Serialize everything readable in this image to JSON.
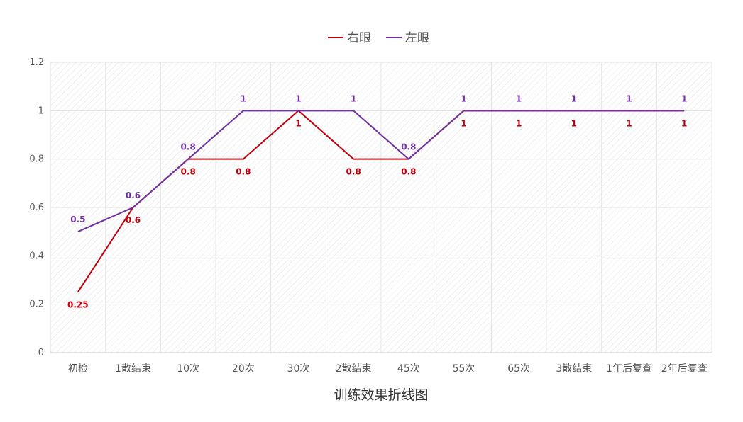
{
  "chart_data": {
    "type": "line",
    "title": "",
    "xlabel": "训练效果折线图",
    "ylabel": "",
    "ylim": [
      0,
      1.2
    ],
    "y_ticks": [
      "0",
      "0.2",
      "0.4",
      "0.6",
      "0.8",
      "1",
      "1.2"
    ],
    "y_tick_values": [
      0,
      0.2,
      0.4,
      0.6,
      0.8,
      1,
      1.2
    ],
    "categories": [
      "初检",
      "1散结束",
      "10次",
      "20次",
      "30次",
      "2散结束",
      "45次",
      "55次",
      "65次",
      "3散结束",
      "1年后复查",
      "2年后复查"
    ],
    "legend_position": "top-center",
    "grid": true,
    "series": [
      {
        "name": "右眼",
        "color": "#c0000c",
        "label_position": "below",
        "values": [
          0.25,
          0.6,
          0.8,
          0.8,
          1,
          0.8,
          0.8,
          1,
          1,
          1,
          1,
          1
        ],
        "labels": [
          "0.25",
          "0.6",
          "0.8",
          "0.8",
          "1",
          "0.8",
          "0.8",
          "1",
          "1",
          "1",
          "1",
          "1"
        ]
      },
      {
        "name": "左眼",
        "color": "#7030a0",
        "label_position": "above",
        "values": [
          0.5,
          0.6,
          0.8,
          1,
          1,
          1,
          0.8,
          1,
          1,
          1,
          1,
          1
        ],
        "labels": [
          "0.5",
          "0.6",
          "0.8",
          "1",
          "1",
          "1",
          "0.8",
          "1",
          "1",
          "1",
          "1",
          "1"
        ]
      }
    ]
  }
}
